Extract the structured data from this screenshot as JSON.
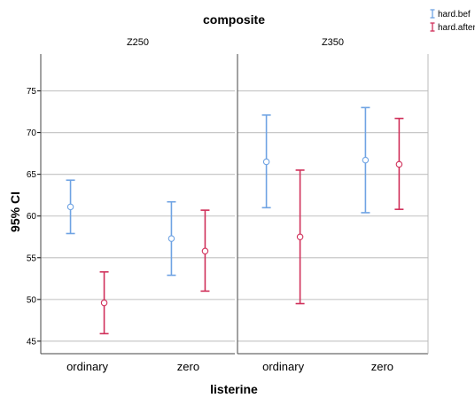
{
  "chart_data": {
    "type": "errorbar",
    "title": "composite",
    "xlabel": "listerine",
    "ylabel": "95% CI",
    "ylim": [
      43.5,
      77.5
    ],
    "yticks": [
      "45",
      "50",
      "55",
      "60",
      "65",
      "70",
      "75"
    ],
    "ytick_values": [
      45,
      50,
      55,
      60,
      65,
      70,
      75
    ],
    "grid": "horizontal",
    "legend_position": "top-right",
    "categories": [
      "ordinary",
      "zero"
    ],
    "panels": [
      {
        "title": "Z250",
        "series": [
          {
            "name": "hard.bef",
            "color": "#6fa3e3",
            "points": [
              {
                "category": "ordinary",
                "mean": 61.1,
                "low": 57.9,
                "high": 64.3
              },
              {
                "category": "zero",
                "mean": 57.3,
                "low": 52.9,
                "high": 61.7
              }
            ]
          },
          {
            "name": "hard.after",
            "color": "#d0305a",
            "points": [
              {
                "category": "ordinary",
                "mean": 49.6,
                "low": 45.9,
                "high": 53.3
              },
              {
                "category": "zero",
                "mean": 55.8,
                "low": 51.0,
                "high": 60.7
              }
            ]
          }
        ]
      },
      {
        "title": "Z350",
        "series": [
          {
            "name": "hard.bef",
            "color": "#6fa3e3",
            "points": [
              {
                "category": "ordinary",
                "mean": 66.5,
                "low": 61.0,
                "high": 72.1
              },
              {
                "category": "zero",
                "mean": 66.7,
                "low": 60.4,
                "high": 73.0
              }
            ]
          },
          {
            "name": "hard.after",
            "color": "#d0305a",
            "points": [
              {
                "category": "ordinary",
                "mean": 57.5,
                "low": 49.5,
                "high": 65.5
              },
              {
                "category": "zero",
                "mean": 66.2,
                "low": 60.8,
                "high": 71.7
              }
            ]
          }
        ]
      }
    ],
    "legend": [
      "hard.bef",
      "hard.after"
    ]
  }
}
